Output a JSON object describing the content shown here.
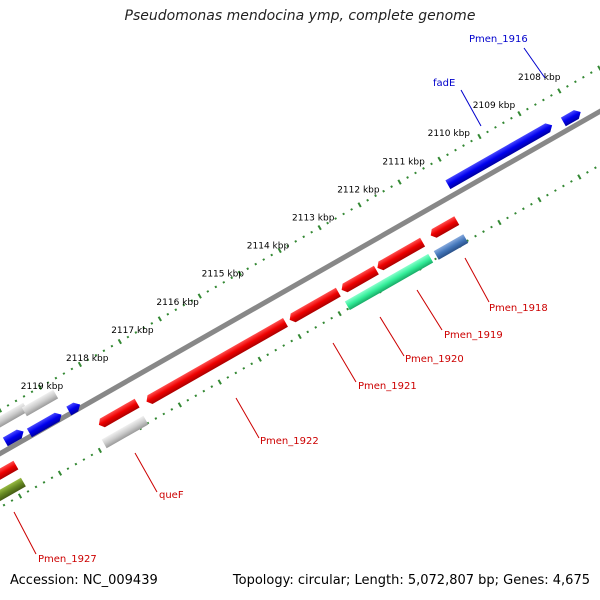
{
  "title": "Pseudomonas mendocina ymp, complete genome",
  "footer": {
    "accession": "Accession: NC_009439",
    "summary": "Topology: circular; Length: 5,072,807 bp; Genes: 4,675"
  },
  "ticks": [
    "2108 kbp",
    "2109 kbp",
    "2110 kbp",
    "2111 kbp",
    "2112 kbp",
    "2113 kbp",
    "2114 kbp",
    "2115 kbp",
    "2116 kbp",
    "2117 kbp",
    "2118 kbp",
    "2119 kbp"
  ],
  "gene_labels": {
    "forward": [
      "Pmen_1916",
      "fadE"
    ],
    "reverse": [
      "Pmen_1918",
      "Pmen_1919",
      "Pmen_1920",
      "Pmen_1921",
      "Pmen_1922",
      "queF",
      "Pmen_1927"
    ]
  },
  "colors": {
    "forward_label": "#0000cc",
    "reverse_label": "#cc0000",
    "red_feature": "#ee0000",
    "blue_feature": "#0000ee",
    "grey_feature": "#cccccc",
    "green_feature": "#33ee99",
    "steel_feature": "#4477bb",
    "olive_feature": "#668822",
    "backbone": "#888888",
    "tick_marks": "#338833"
  }
}
